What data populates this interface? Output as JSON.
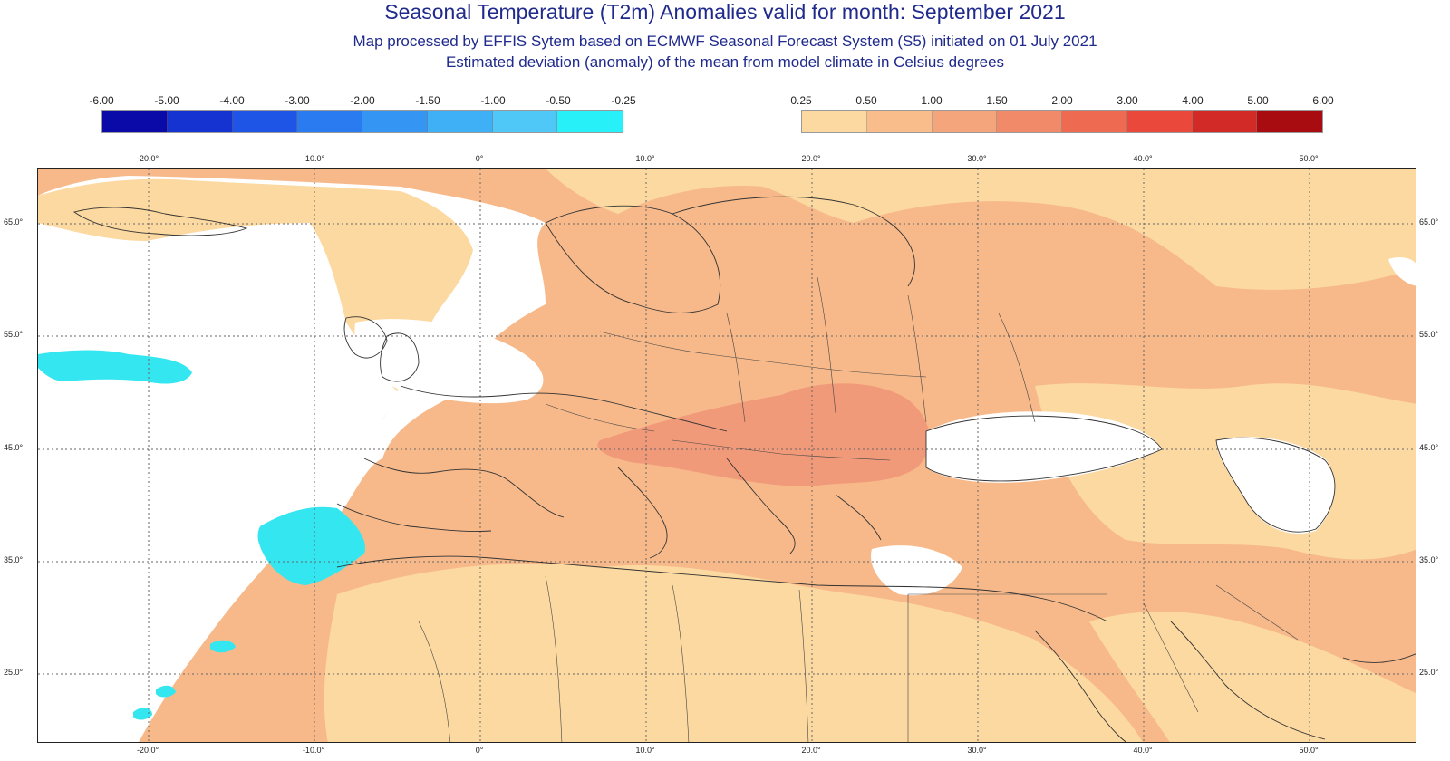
{
  "title": "Seasonal Temperature (T2m) Anomalies valid for month: September 2021",
  "subtitle_1": "Map processed by EFFIS Sytem based on ECMWF Seasonal Forecast System (S5) initiated on 01 July 2021",
  "subtitle_2": "Estimated deviation (anomaly) of the mean from model climate in Celsius degrees",
  "legend_cold": {
    "labels": [
      "-6.00",
      "-5.00",
      "-4.00",
      "-3.00",
      "-2.00",
      "-1.50",
      "-1.00",
      "-0.50",
      "-0.25"
    ],
    "colors": [
      "#0a0aa8",
      "#1433d0",
      "#1f55e6",
      "#2a7af0",
      "#3496f2",
      "#3fb0f5",
      "#4fc8f7",
      "#28f0f8"
    ]
  },
  "legend_warm": {
    "labels": [
      "0.25",
      "0.50",
      "1.00",
      "1.50",
      "2.00",
      "3.00",
      "4.00",
      "5.00",
      "6.00"
    ],
    "colors": [
      "#fcd9a0",
      "#f9bd8c",
      "#f5a57c",
      "#f18a68",
      "#ee6b52",
      "#e9483a",
      "#d22a26",
      "#a80c10"
    ]
  },
  "lon_labels": [
    "-20.0°",
    "-10.0°",
    "0°",
    "10.0°",
    "20.0°",
    "30.0°",
    "40.0°",
    "50.0°"
  ],
  "lat_labels": [
    "65.0°",
    "55.0°",
    "45.0°",
    "35.0°",
    "25.0°"
  ],
  "map_colors": {
    "no_anomaly": "#ffffff",
    "light_warm": "#fcd9a0",
    "moderate_warm": "#f7b98a",
    "strong_warm": "#f19a7a",
    "cold": "#33e6f0"
  }
}
